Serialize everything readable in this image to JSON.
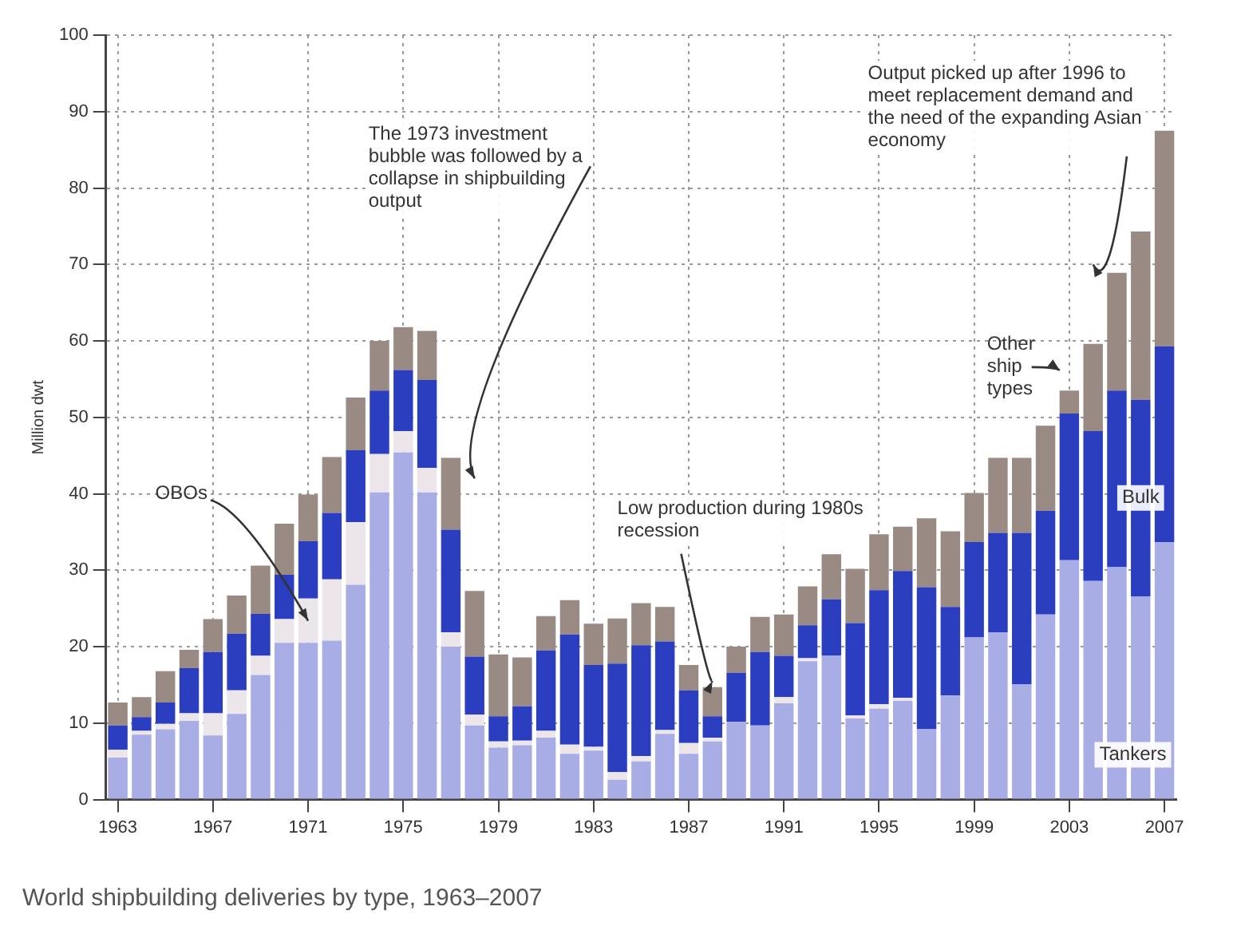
{
  "chart_data": {
    "type": "bar",
    "stacked": true,
    "title": "World shipbuilding deliveries by type, 1963–2007",
    "ylabel": "Million dwt",
    "categories": [
      "1963",
      null,
      null,
      null,
      "1967",
      null,
      null,
      null,
      "1971",
      null,
      null,
      null,
      "1975",
      null,
      null,
      null,
      "1979",
      null,
      null,
      null,
      "1983",
      null,
      null,
      null,
      "1987",
      null,
      null,
      null,
      "1991",
      null,
      null,
      null,
      "1995",
      null,
      null,
      null,
      "1999",
      null,
      null,
      null,
      "2003",
      null,
      null,
      null,
      "2007"
    ],
    "series": [
      {
        "name": "Tankers",
        "color": "#a9ade6",
        "values": [
          5.5,
          8.5,
          9.2,
          10.3,
          8.4,
          11.2,
          16.3,
          20.5,
          20.5,
          20.8,
          28.1,
          40.2,
          45.4,
          40.2,
          20.0,
          9.7,
          6.8,
          7.1,
          8.1,
          6.0,
          6.4,
          2.6,
          5.0,
          8.6,
          6.0,
          7.6,
          10.2,
          9.7,
          12.6,
          18.1,
          18.8,
          10.6,
          11.9,
          12.9,
          9.2,
          13.6,
          21.2,
          21.9,
          15.1,
          24.2,
          31.3,
          28.6,
          30.4,
          26.6,
          33.7
        ]
      },
      {
        "name": "OBOs",
        "color": "#ece6ea",
        "values": [
          1.0,
          0.5,
          0.7,
          1.0,
          2.9,
          3.1,
          2.5,
          3.1,
          5.8,
          8.0,
          8.2,
          5.0,
          2.8,
          3.2,
          1.9,
          1.4,
          0.8,
          0.6,
          0.9,
          1.2,
          0.5,
          1.0,
          0.7,
          0.5,
          1.4,
          0.5,
          null,
          null,
          0.8,
          0.4,
          null,
          0.4,
          0.6,
          0.4,
          0,
          0,
          0,
          0,
          0,
          0,
          0,
          0,
          0,
          0,
          0
        ]
      },
      {
        "name": "Bulk",
        "color": "#2b3ec0",
        "values": [
          3.2,
          1.8,
          2.8,
          5.9,
          8.0,
          7.4,
          5.5,
          5.8,
          7.5,
          8.7,
          9.4,
          8.3,
          8.0,
          11.5,
          13.4,
          7.6,
          3.3,
          4.5,
          10.5,
          14.4,
          10.7,
          14.2,
          14.5,
          11.6,
          6.9,
          2.8,
          6.4,
          9.6,
          5.4,
          4.3,
          7.4,
          12.1,
          14.9,
          16.6,
          18.6,
          11.6,
          12.5,
          13.0,
          19.8,
          13.6,
          19.2,
          19.6,
          23.1,
          25.7,
          25.6
        ]
      },
      {
        "name": "Other ship types",
        "color": "#9a8a84",
        "values": [
          3.0,
          2.6,
          4.1,
          2.4,
          4.3,
          5.0,
          6.3,
          6.7,
          6.1,
          7.3,
          6.9,
          6.5,
          5.6,
          6.4,
          9.4,
          8.6,
          8.1,
          6.4,
          4.5,
          4.5,
          5.4,
          5.9,
          5.5,
          4.5,
          3.3,
          3.8,
          3.4,
          4.6,
          5.4,
          5.1,
          5.9,
          7.1,
          7.3,
          5.8,
          9.0,
          9.9,
          6.4,
          9.8,
          9.8,
          11.1,
          3.0,
          11.4,
          15.4,
          22.0,
          28.2
        ]
      }
    ],
    "ylim": [
      0,
      100
    ],
    "yticks": [
      0,
      10,
      20,
      30,
      40,
      50,
      60,
      70,
      80,
      90,
      100
    ],
    "grid": true,
    "legend": false,
    "annotations": [
      "The 1973 investment bubble was followed by a collapse in shipbuilding output",
      "Low production during 1980s recession",
      "Output picked up after 1996 to meet replacement demand and the need of the expanding Asian economy"
    ]
  }
}
